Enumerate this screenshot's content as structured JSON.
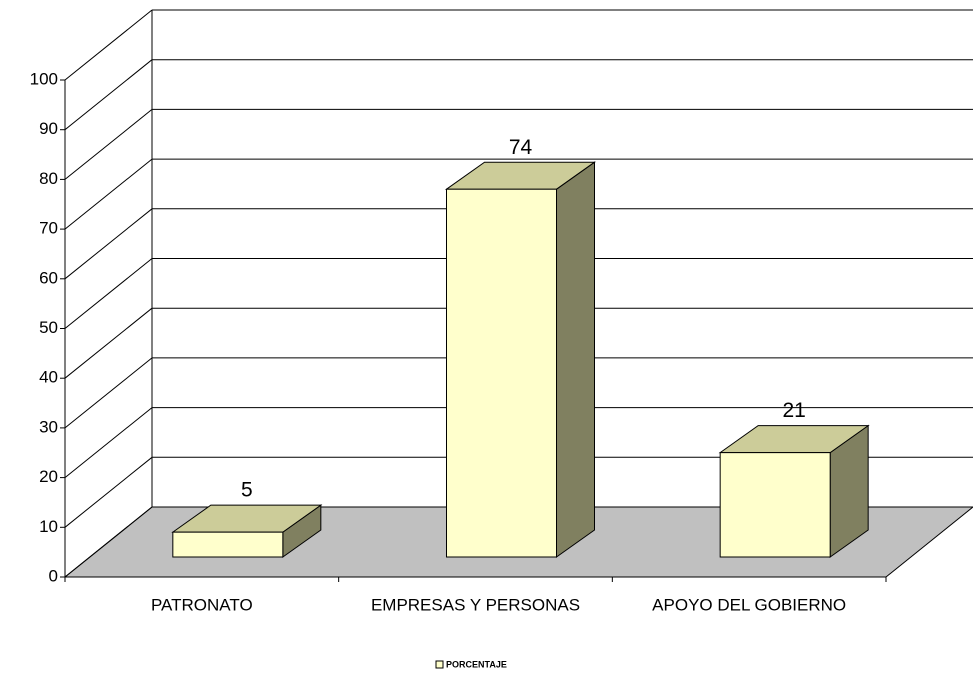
{
  "chart_data": {
    "type": "bar3d",
    "categories": [
      "PATRONATO",
      "EMPRESAS Y PERSONAS",
      "APOYO DEL GOBIERNO"
    ],
    "series": [
      {
        "name": "PORCENTAJE",
        "color": "#ffffcc",
        "values": [
          5,
          74,
          21
        ]
      }
    ],
    "ylim": [
      0,
      100
    ],
    "yticks": [
      0,
      10,
      20,
      30,
      40,
      50,
      60,
      70,
      80,
      90,
      100
    ],
    "grid": true,
    "legend": "bottom"
  }
}
